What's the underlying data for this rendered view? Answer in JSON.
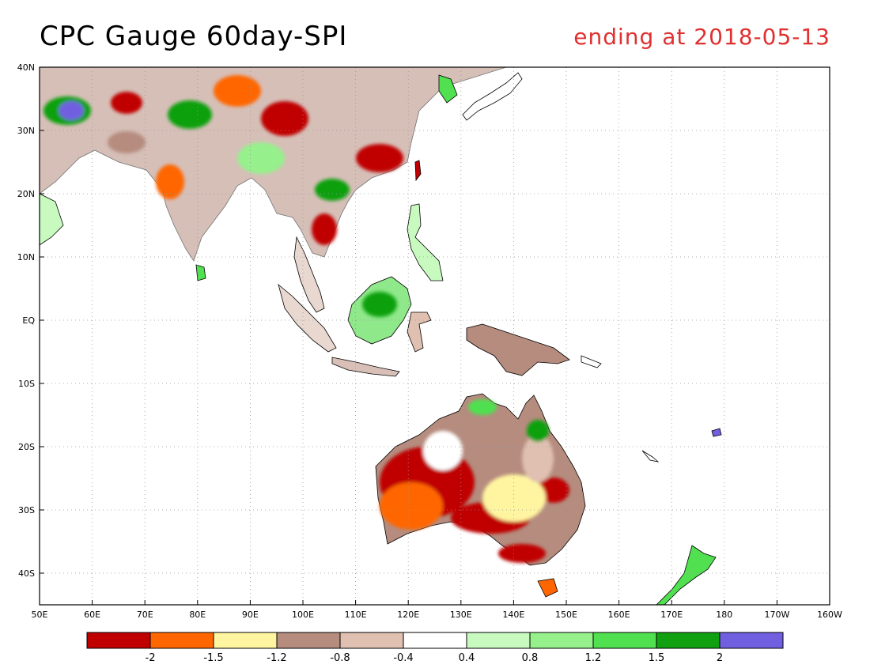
{
  "title": "CPC Gauge 60day-SPI",
  "subtitle": "ending at 2018-05-13",
  "map": {
    "lon_range": [
      50,
      200
    ],
    "lat_range": [
      -45,
      40
    ],
    "lat_ticks": [
      {
        "value": 40,
        "label": "40N"
      },
      {
        "value": 30,
        "label": "30N"
      },
      {
        "value": 20,
        "label": "20N"
      },
      {
        "value": 10,
        "label": "10N"
      },
      {
        "value": 0,
        "label": "EQ"
      },
      {
        "value": -10,
        "label": "10S"
      },
      {
        "value": -20,
        "label": "20S"
      },
      {
        "value": -30,
        "label": "30S"
      },
      {
        "value": -40,
        "label": "40S"
      }
    ],
    "lon_ticks": [
      {
        "value": 50,
        "label": "50E"
      },
      {
        "value": 60,
        "label": "60E"
      },
      {
        "value": 70,
        "label": "70E"
      },
      {
        "value": 80,
        "label": "80E"
      },
      {
        "value": 90,
        "label": "90E"
      },
      {
        "value": 100,
        "label": "100E"
      },
      {
        "value": 110,
        "label": "110E"
      },
      {
        "value": 120,
        "label": "120E"
      },
      {
        "value": 130,
        "label": "130E"
      },
      {
        "value": 140,
        "label": "140E"
      },
      {
        "value": 150,
        "label": "150E"
      },
      {
        "value": 160,
        "label": "160E"
      },
      {
        "value": 170,
        "label": "170E"
      },
      {
        "value": 180,
        "label": "180"
      },
      {
        "value": 190,
        "label": "170W"
      },
      {
        "value": 200,
        "label": "160W"
      }
    ]
  },
  "colorbar": {
    "colors": [
      "#c00000",
      "#ff6600",
      "#fff5a0",
      "#b58c7e",
      "#e0c0b0",
      "#ffffff",
      "#c8fac0",
      "#96f08c",
      "#50e050",
      "#10a010",
      "#7060e0"
    ],
    "labels": [
      "-2",
      "-1.5",
      "-1.2",
      "-0.8",
      "-0.4",
      "0.4",
      "0.8",
      "1.2",
      "1.5",
      "2"
    ]
  }
}
